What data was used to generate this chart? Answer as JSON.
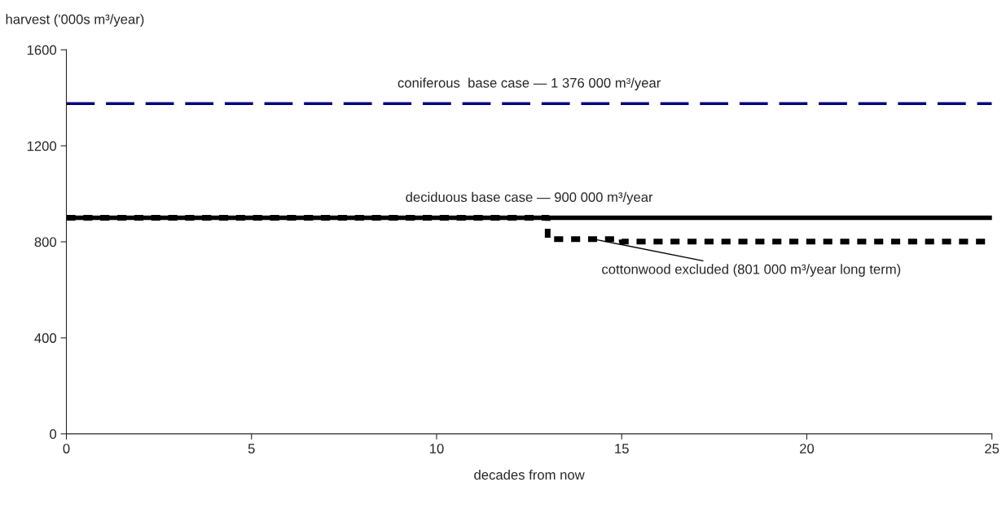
{
  "chart_data": {
    "type": "line",
    "xlabel": "decades from now",
    "ylabel": "harvest ('000s m³/year)",
    "xlim": [
      0,
      25
    ],
    "xticks": [
      0,
      5,
      10,
      15,
      20,
      25
    ],
    "ylim": [
      0,
      1600
    ],
    "yticks": [
      0,
      400,
      800,
      1200,
      1600
    ],
    "grid": false,
    "legend": false,
    "marker": "none",
    "series": [
      {
        "name": "coniferous  base case — 1 376 000 m³/year",
        "color": "#000080",
        "line_style": "dashed",
        "x": [
          0,
          25
        ],
        "values": [
          1376,
          1376
        ]
      },
      {
        "name": "deciduous base case — 900 000 m³/year",
        "color": "#000000",
        "line_style": "solid",
        "x": [
          0,
          25
        ],
        "values": [
          900,
          900
        ]
      },
      {
        "name": "cottonwood excluded (801 000 m³/year long term)",
        "color": "#000000",
        "line_style": "dotted",
        "x": [
          0,
          13,
          13,
          15,
          15,
          25
        ],
        "values": [
          900,
          900,
          811,
          811,
          801,
          801
        ]
      }
    ]
  }
}
